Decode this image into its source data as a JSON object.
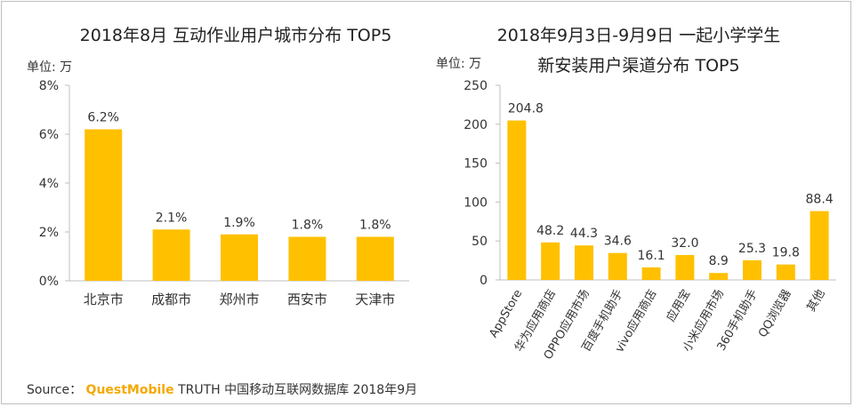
{
  "chart_data": [
    {
      "type": "bar",
      "title": "2018年8月 互动作业用户城市分布 TOP5",
      "unit_label": "单位: 万",
      "categories": [
        "北京市",
        "成都市",
        "郑州市",
        "西安市",
        "天津市"
      ],
      "values": [
        6.2,
        2.1,
        1.9,
        1.8,
        1.8
      ],
      "value_labels": [
        "6.2%",
        "2.1%",
        "1.9%",
        "1.8%",
        "1.8%"
      ],
      "yticks": [
        "0%",
        "2%",
        "4%",
        "6%",
        "8%"
      ],
      "ylim": [
        0,
        8
      ],
      "color": "#ffc000"
    },
    {
      "type": "bar",
      "title_lines": [
        "2018年9月3日-9月9日 一起小学学生",
        "新安装用户渠道分布 TOP5"
      ],
      "unit_label": "单位: 万",
      "categories": [
        "AppStore",
        "华为应用商店",
        "OPPO应用市场",
        "百度手机助手",
        "vivo应用商店",
        "应用宝",
        "小米应用市场",
        "360手机助手",
        "QQ浏览器",
        "其他"
      ],
      "values": [
        204.8,
        48.2,
        44.3,
        34.6,
        16.1,
        32.0,
        8.9,
        25.3,
        19.8,
        88.4
      ],
      "value_labels": [
        "204.8",
        "48.2",
        "44.3",
        "34.6",
        "16.1",
        "32.0",
        "8.9",
        "25.3",
        "19.8",
        "88.4"
      ],
      "yticks": [
        "0",
        "50",
        "100",
        "150",
        "200",
        "250"
      ],
      "ylim": [
        0,
        250
      ],
      "color": "#ffc000"
    }
  ],
  "source": {
    "prefix": "Source：",
    "brand": "QuestMobile",
    "text": "TRUTH 中国移动互联网数据库 2018年9月"
  }
}
